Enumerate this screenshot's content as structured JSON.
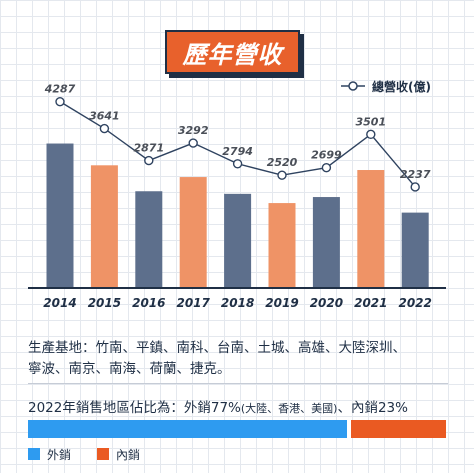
{
  "title": "歷年營收",
  "legend_label": "總營收(億)",
  "colors": {
    "bar_slate": "#5d6f8c",
    "bar_orange": "#ef9366",
    "line": "#2f4360",
    "outer": "#2e9bf0",
    "inner": "#ea5a22"
  },
  "chart_data": {
    "type": "bar",
    "categories": [
      "2014",
      "2015",
      "2016",
      "2017",
      "2018",
      "2019",
      "2020",
      "2021",
      "2022"
    ],
    "values": [
      4287,
      3641,
      2871,
      3292,
      2794,
      2520,
      2699,
      3501,
      2237
    ],
    "bar_colors": [
      "slate",
      "orange",
      "slate",
      "orange",
      "slate",
      "orange",
      "slate",
      "orange",
      "slate"
    ],
    "series": [
      {
        "name": "總營收(億)",
        "values": [
          4287,
          3641,
          2871,
          3292,
          2794,
          2520,
          2699,
          3501,
          2237
        ]
      }
    ],
    "legend_position": "top-right",
    "grid": true
  },
  "info": {
    "line1": "生產基地：竹南、平鎮、南科、台南、土城、高雄、大陸深圳、",
    "line2": "寧波、南京、南海、荷蘭、捷克。"
  },
  "share": {
    "prefix": "2022年銷售地區佔比為：外銷77%",
    "detail": "(大陸、香港、美國)",
    "suffix": "、內銷23%",
    "outer_pct": 77,
    "inner_pct": 23,
    "outer_label": "外銷",
    "inner_label": "內銷"
  }
}
